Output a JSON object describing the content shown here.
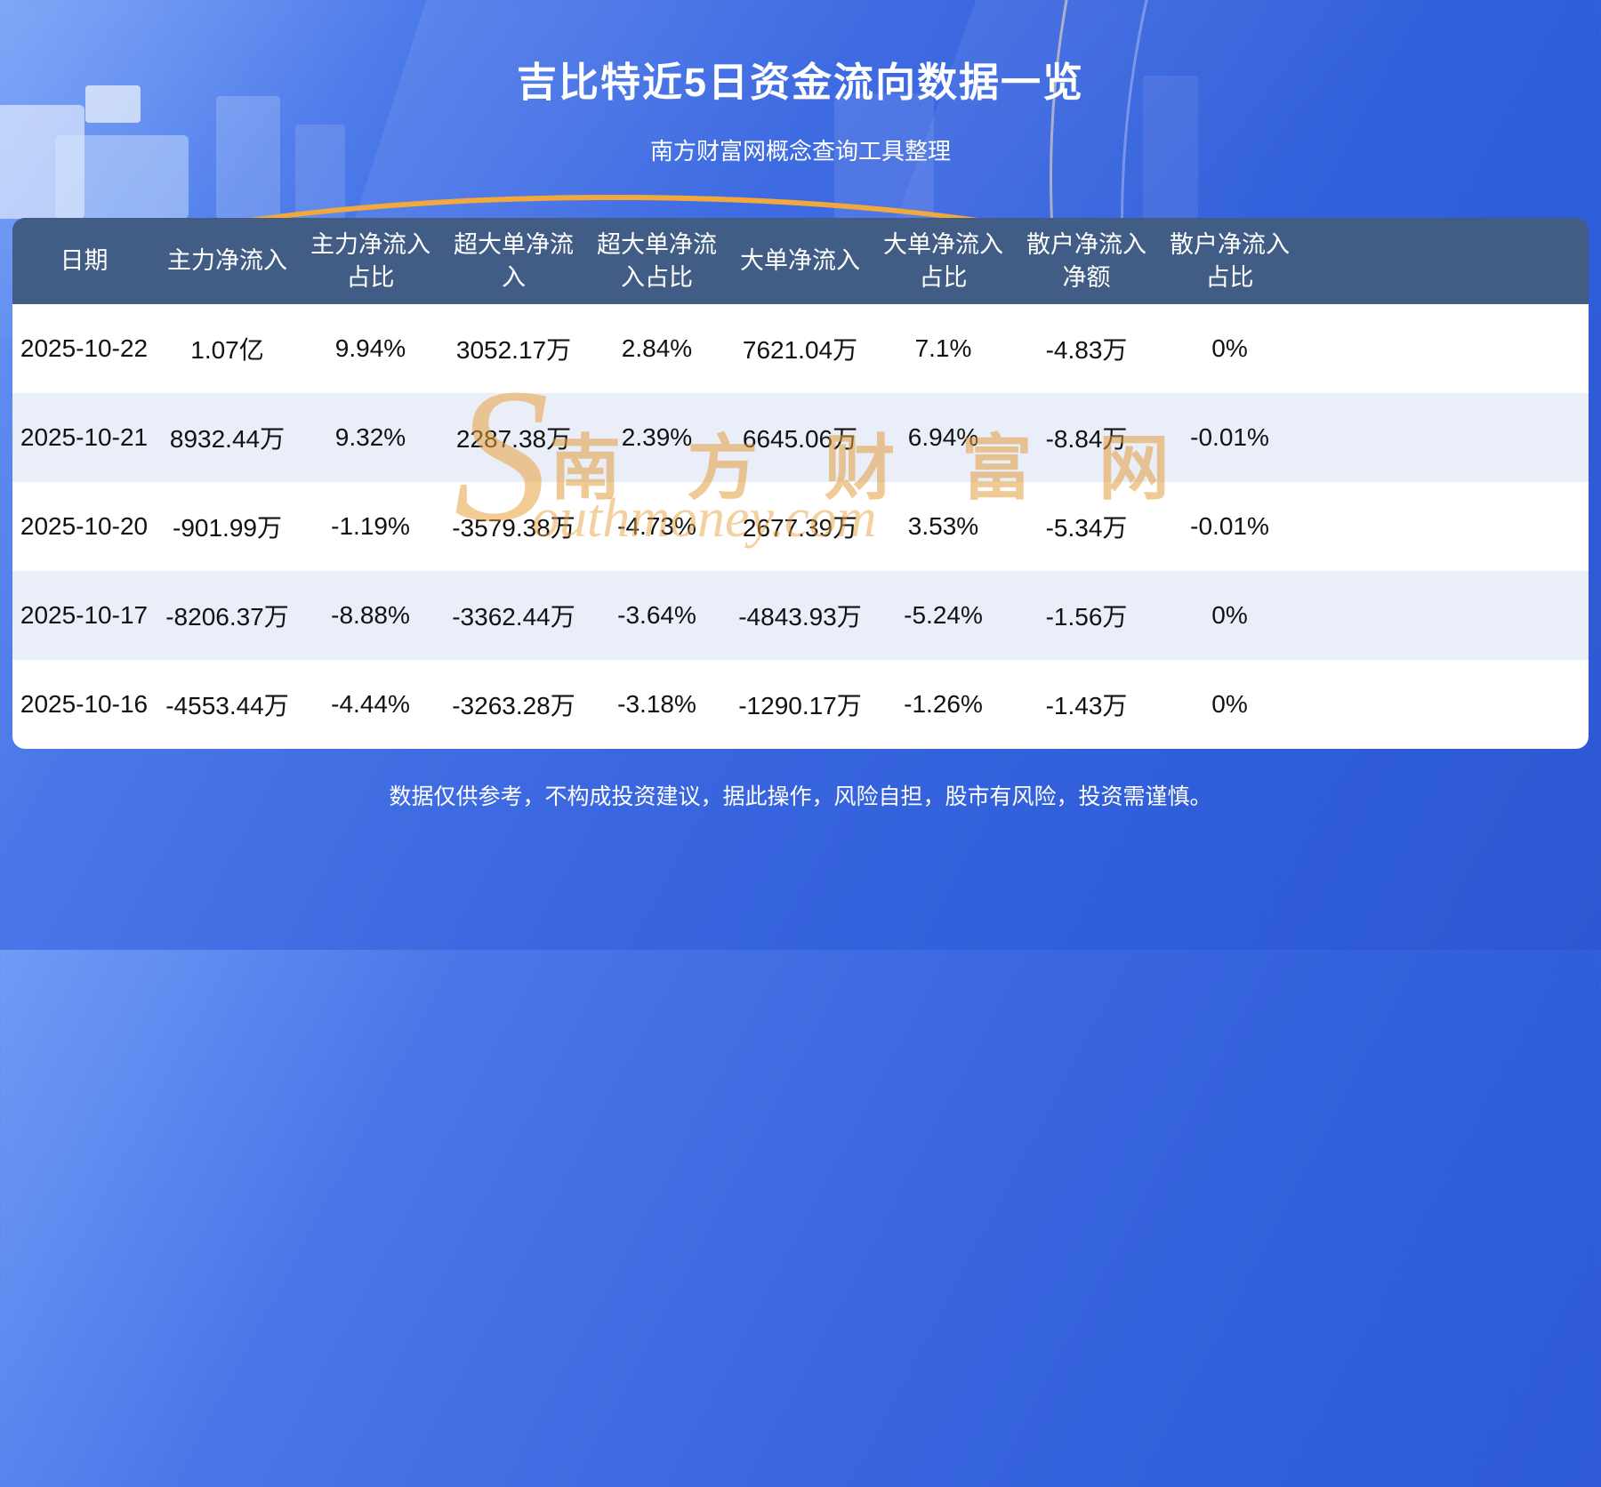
{
  "page": {
    "title": "吉比特近5日资金流向数据一览",
    "subtitle": "南方财富网概念查询工具整理",
    "disclaimer": "数据仅供参考，不构成投资建议，据此操作，风险自担，股市有风险，投资需谨慎。"
  },
  "watermark": {
    "initial": "S",
    "cn": "南 方 财 富 网",
    "en": "outhmoney.com"
  },
  "colors": {
    "header_bg": "#415d85",
    "row_bg": "#ffffff",
    "row_alt_bg": "#e9eef9",
    "accent_gold": "#f2a83c",
    "title_color": "#ffffff"
  },
  "chart_data": {
    "type": "table",
    "title": "吉比特近5日资金流向数据一览",
    "columns": [
      "日期",
      "主力净流入",
      "主力净流入占比",
      "超大单净流入",
      "超大单净流入占比",
      "大单净流入",
      "大单净流入占比",
      "散户净流入净额",
      "散户净流入占比"
    ],
    "rows": [
      [
        "2025-10-22",
        "1.07亿",
        "9.94%",
        "3052.17万",
        "2.84%",
        "7621.04万",
        "7.1%",
        "-4.83万",
        "0%"
      ],
      [
        "2025-10-21",
        "8932.44万",
        "9.32%",
        "2287.38万",
        "2.39%",
        "6645.06万",
        "6.94%",
        "-8.84万",
        "-0.01%"
      ],
      [
        "2025-10-20",
        "-901.99万",
        "-1.19%",
        "-3579.38万",
        "-4.73%",
        "2677.39万",
        "3.53%",
        "-5.34万",
        "-0.01%"
      ],
      [
        "2025-10-17",
        "-8206.37万",
        "-8.88%",
        "-3362.44万",
        "-3.64%",
        "-4843.93万",
        "-5.24%",
        "-1.56万",
        "0%"
      ],
      [
        "2025-10-16",
        "-4553.44万",
        "-4.44%",
        "-3263.28万",
        "-3.18%",
        "-1290.17万",
        "-1.26%",
        "-1.43万",
        "0%"
      ]
    ]
  }
}
